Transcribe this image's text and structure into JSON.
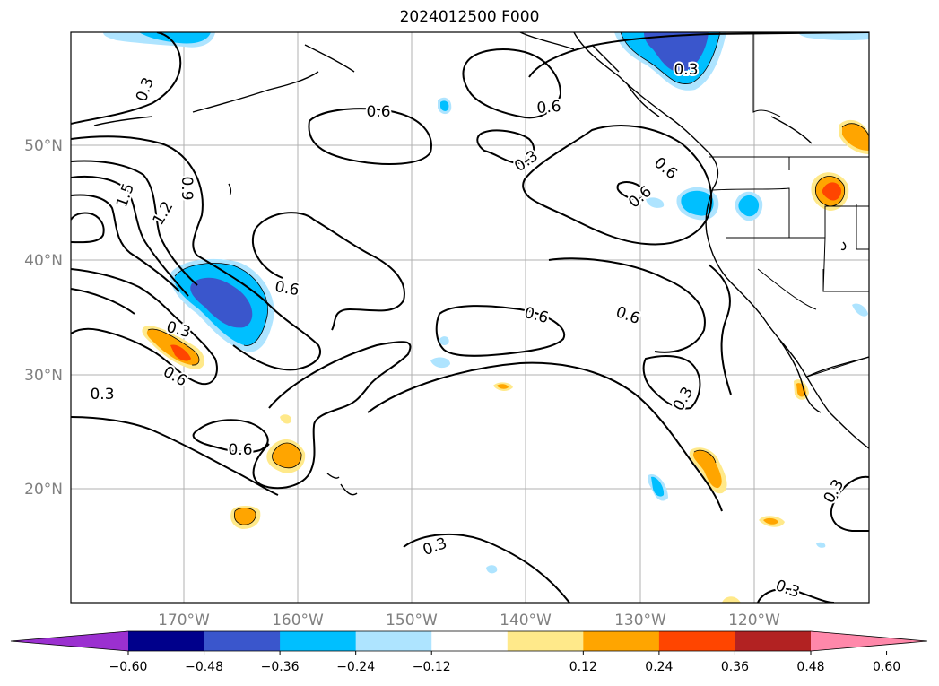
{
  "title": "2024012500 F000",
  "map": {
    "lat_labels": [
      "50°N",
      "40°N",
      "30°N",
      "20°N"
    ],
    "lon_labels": [
      "170°W",
      "160°W",
      "150°W",
      "140°W",
      "130°W",
      "120°W"
    ],
    "contour_labels": [
      "0.3",
      "1.5",
      "1.2",
      "0.9",
      "0.6",
      "0.6",
      "0.6",
      "0.3",
      "0.6",
      "0.3",
      "0.6",
      "0.6",
      "0.3",
      "0.6",
      "0.6",
      "0.3",
      "0.6",
      "0.3",
      "0.3",
      "0.3",
      "0.3"
    ]
  },
  "colorbar": {
    "ticks": [
      "−0.60",
      "−0.48",
      "−0.36",
      "−0.24",
      "−0.12",
      "0.12",
      "0.24",
      "0.36",
      "0.48",
      "0.60"
    ],
    "colors": [
      "#9b30d0",
      "#00008b",
      "#3a56cc",
      "#00bfff",
      "#aee4ff",
      "#ffffff",
      "#ffe98a",
      "#ffa500",
      "#ff4500",
      "#b22222",
      "#ff88aa"
    ]
  }
}
